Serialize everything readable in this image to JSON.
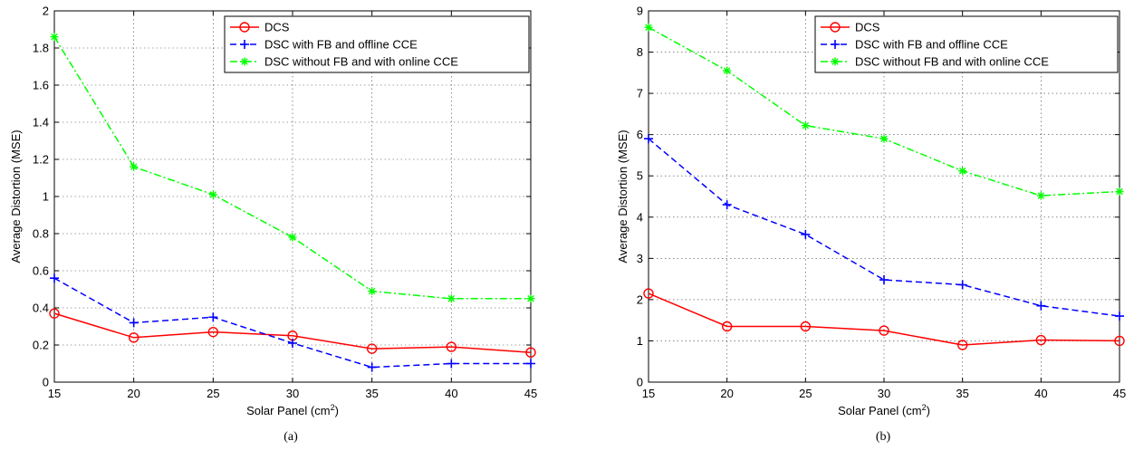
{
  "chart_data": [
    {
      "type": "line",
      "caption": "(a)",
      "xlabel": "Solar Panel (cm",
      "xlabel_sup": "2",
      "xlabel_end": ")",
      "ylabel": "Average Distortion (MSE)",
      "xlim": [
        15,
        45
      ],
      "ylim": [
        0,
        2
      ],
      "x_ticks": [
        15,
        20,
        25,
        30,
        35,
        40,
        45
      ],
      "y_ticks": [
        0,
        0.2,
        0.4,
        0.6,
        0.8,
        1,
        1.2,
        1.4,
        1.6,
        1.8,
        2
      ],
      "y_tick_labels": [
        "0",
        "0.2",
        "0.4",
        "0.6",
        "0.8",
        "1",
        "1.2",
        "1.4",
        "1.6",
        "1.8",
        "2"
      ],
      "grid": true,
      "legend_position": "top-right",
      "x": [
        15,
        20,
        25,
        30,
        35,
        40,
        45
      ],
      "series": [
        {
          "name": "DCS",
          "values": [
            0.37,
            0.24,
            0.27,
            0.25,
            0.18,
            0.19,
            0.16
          ],
          "color": "#ff0000",
          "dash": "solid",
          "marker": "circle"
        },
        {
          "name": "DSC with FB and offline CCE",
          "values": [
            0.56,
            0.32,
            0.35,
            0.21,
            0.08,
            0.1,
            0.1
          ],
          "color": "#0000ff",
          "dash": "dashed",
          "marker": "plus"
        },
        {
          "name": "DSC without FB and with online CCE",
          "values": [
            1.86,
            1.16,
            1.01,
            0.78,
            0.49,
            0.45,
            0.45
          ],
          "color": "#00ff00",
          "dash": "dashdot",
          "marker": "asterisk"
        }
      ]
    },
    {
      "type": "line",
      "caption": "(b)",
      "xlabel": "Solar Panel (cm",
      "xlabel_sup": "2",
      "xlabel_end": ")",
      "ylabel": "Average Distortion (MSE)",
      "xlim": [
        15,
        45
      ],
      "ylim": [
        0,
        9
      ],
      "x_ticks": [
        15,
        20,
        25,
        30,
        35,
        40,
        45
      ],
      "y_ticks": [
        0,
        1,
        2,
        3,
        4,
        5,
        6,
        7,
        8,
        9
      ],
      "y_tick_labels": [
        "0",
        "1",
        "2",
        "3",
        "4",
        "5",
        "6",
        "7",
        "8",
        "9"
      ],
      "grid": true,
      "legend_position": "top-right",
      "x": [
        15,
        20,
        25,
        30,
        35,
        40,
        45
      ],
      "series": [
        {
          "name": "DCS",
          "values": [
            2.15,
            1.35,
            1.35,
            1.25,
            0.9,
            1.02,
            1.0
          ],
          "color": "#ff0000",
          "dash": "solid",
          "marker": "circle"
        },
        {
          "name": "DSC with FB and offline CCE",
          "values": [
            5.9,
            4.3,
            3.58,
            2.48,
            2.36,
            1.85,
            1.6
          ],
          "color": "#0000ff",
          "dash": "dashed",
          "marker": "plus"
        },
        {
          "name": "DSC without FB and with online CCE",
          "values": [
            8.6,
            7.55,
            6.22,
            5.9,
            5.12,
            4.52,
            4.62
          ],
          "color": "#00ff00",
          "dash": "dashdot",
          "marker": "asterisk"
        }
      ]
    }
  ]
}
